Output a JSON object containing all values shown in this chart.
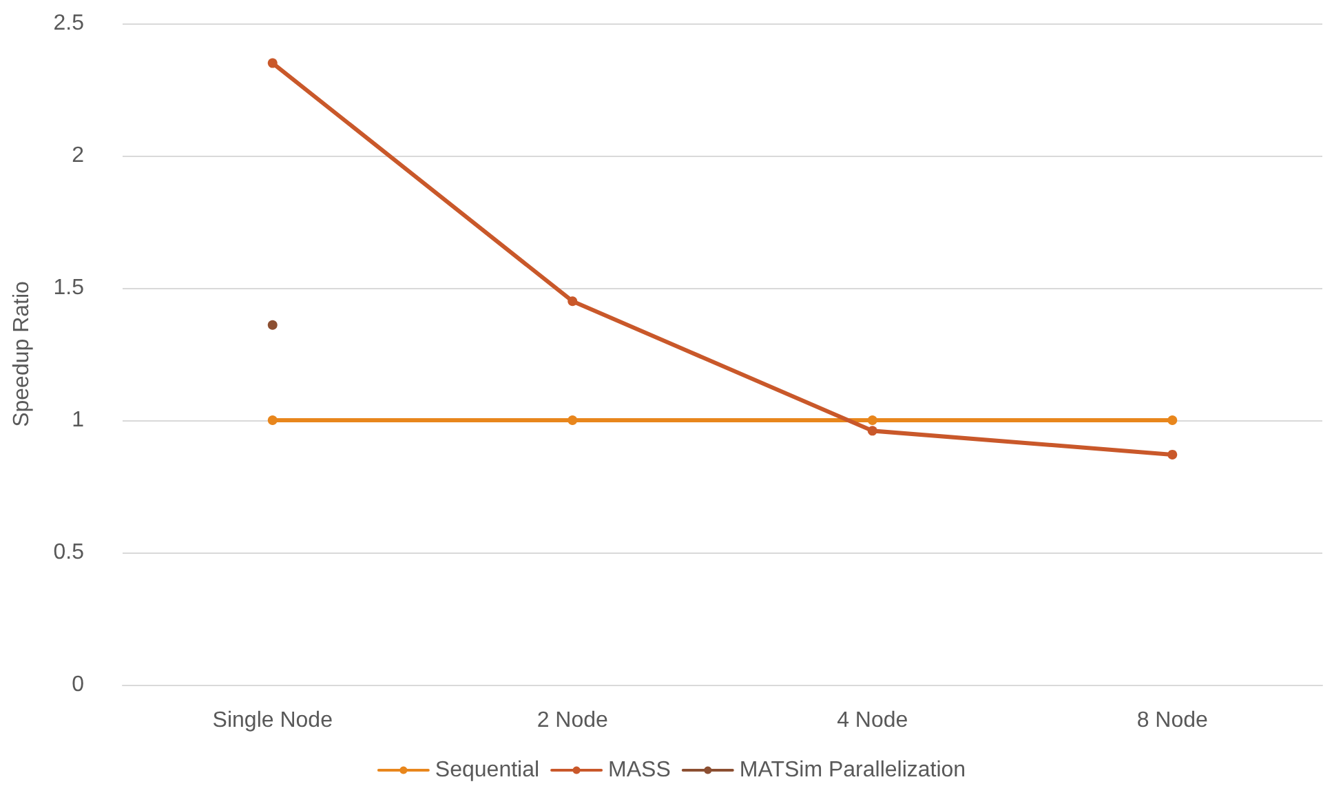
{
  "chart_data": {
    "type": "line",
    "ylabel": "Speedup Ratio",
    "categories": [
      "Single Node",
      "2 Node",
      "4 Node",
      "8 Node"
    ],
    "series": [
      {
        "name": "Sequential",
        "color": "#e8861c",
        "values": [
          1,
          1,
          1,
          1
        ]
      },
      {
        "name": "MASS",
        "color": "#c9582a",
        "values": [
          2.35,
          1.45,
          0.96,
          0.87
        ]
      },
      {
        "name": "MATSim Parallelization",
        "color": "#8c4f32",
        "values": [
          1.36,
          null,
          null,
          null
        ]
      }
    ],
    "ylim": [
      0,
      2.5
    ],
    "yticks": [
      0,
      0.5,
      1,
      1.5,
      2,
      2.5
    ],
    "grid": "y",
    "legend": "bottom",
    "marker": "circle",
    "line_style": "solid"
  }
}
